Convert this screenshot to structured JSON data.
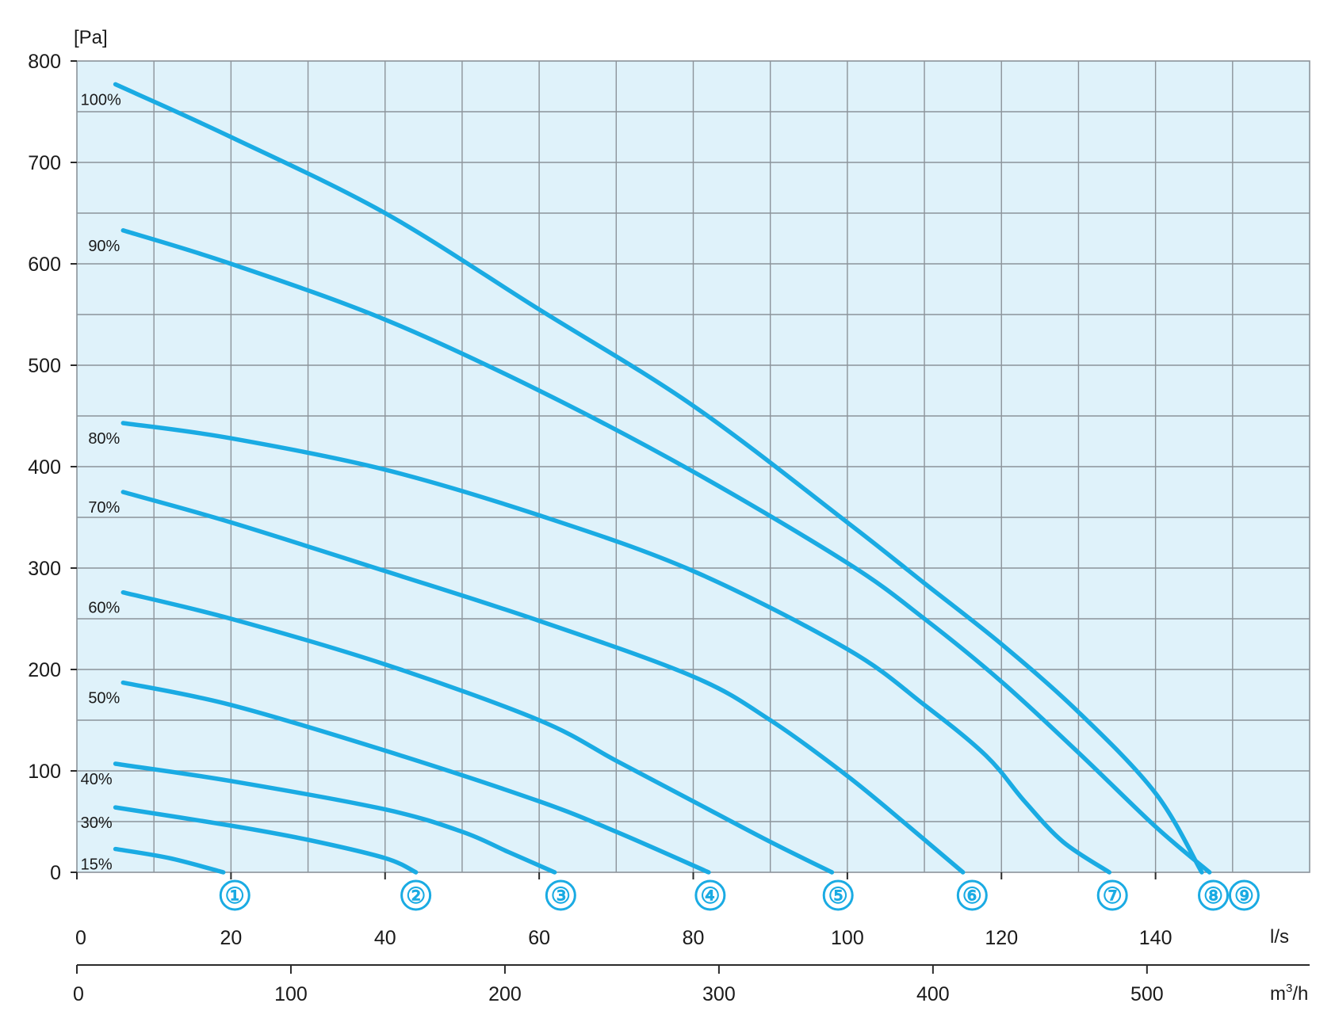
{
  "chart_data": {
    "type": "line",
    "title": "",
    "ylabel": "[Pa]",
    "xlabel_primary": "l/s",
    "xlabel_secondary_prefix": "m",
    "xlabel_secondary_sup": "3",
    "xlabel_secondary_suffix": "/h",
    "xlim": [
      0,
      160
    ],
    "ylim": [
      0,
      800
    ],
    "y_ticks": [
      "0",
      "100",
      "200",
      "300",
      "400",
      "500",
      "600",
      "700",
      "800"
    ],
    "x_ticks_ls": [
      "0",
      "20",
      "40",
      "60",
      "80",
      "100",
      "120",
      "140"
    ],
    "x_ticks_m3h": [
      "0",
      "100",
      "200",
      "300",
      "400",
      "500"
    ],
    "grid": true,
    "plot_background": "#dff2fa",
    "curve_color": "#1aabe3",
    "series": [
      {
        "name": "100%",
        "x": [
          5,
          20,
          40,
          60,
          80,
          100,
          110,
          120,
          130,
          140,
          146
        ],
        "y": [
          777,
          725,
          650,
          555,
          460,
          345,
          285,
          225,
          158,
          78,
          0
        ]
      },
      {
        "name": "90%",
        "x": [
          6,
          20,
          40,
          60,
          80,
          100,
          110,
          120,
          130,
          140,
          147
        ],
        "y": [
          633,
          600,
          545,
          475,
          395,
          305,
          250,
          188,
          118,
          45,
          0
        ]
      },
      {
        "name": "80%",
        "x": [
          6,
          20,
          40,
          60,
          80,
          100,
          110,
          118,
          123,
          128,
          134
        ],
        "y": [
          443,
          428,
          397,
          352,
          297,
          220,
          165,
          115,
          70,
          30,
          0
        ]
      },
      {
        "name": "70%",
        "x": [
          6,
          20,
          40,
          60,
          80,
          90,
          100,
          108,
          115
        ],
        "y": [
          375,
          345,
          297,
          248,
          193,
          150,
          95,
          45,
          0
        ]
      },
      {
        "name": "60%",
        "x": [
          6,
          20,
          40,
          60,
          70,
          80,
          90,
          98
        ],
        "y": [
          276,
          250,
          205,
          150,
          110,
          70,
          30,
          0
        ]
      },
      {
        "name": "50%",
        "x": [
          6,
          20,
          40,
          60,
          70,
          82
        ],
        "y": [
          187,
          165,
          120,
          70,
          40,
          0
        ]
      },
      {
        "name": "40%",
        "x": [
          5,
          20,
          40,
          50,
          56,
          62
        ],
        "y": [
          107,
          90,
          62,
          40,
          20,
          0
        ]
      },
      {
        "name": "30%",
        "x": [
          5,
          20,
          30,
          40,
          44
        ],
        "y": [
          64,
          46,
          32,
          14,
          0
        ]
      },
      {
        "name": "15%",
        "x": [
          5,
          12,
          19
        ],
        "y": [
          23,
          14,
          0
        ]
      }
    ],
    "markers": [
      {
        "label": "①",
        "x": 20.5
      },
      {
        "label": "②",
        "x": 44
      },
      {
        "label": "③",
        "x": 62.8
      },
      {
        "label": "④",
        "x": 82.2
      },
      {
        "label": "⑤",
        "x": 98.8
      },
      {
        "label": "⑥",
        "x": 116.2
      },
      {
        "label": "⑦",
        "x": 134.4
      },
      {
        "label": "⑧",
        "x": 147.5
      },
      {
        "label": "⑨",
        "x": 151.5
      }
    ]
  }
}
